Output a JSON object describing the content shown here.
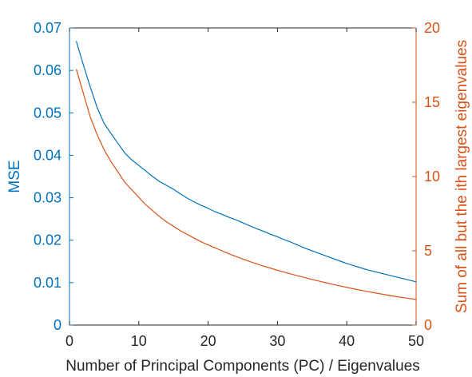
{
  "chart_data": {
    "type": "line",
    "xlabel": "Number of Principal Components (PC) / Eigenvalues",
    "ylabel_left": "MSE",
    "ylabel_right": "Sum of all but the ith largest eigenvalues",
    "xlim": [
      0,
      50
    ],
    "ylim_left": [
      0,
      0.07
    ],
    "ylim_right": [
      0,
      20
    ],
    "xticks": [
      0,
      10,
      20,
      30,
      40,
      50
    ],
    "xtick_labels": [
      "0",
      "10",
      "20",
      "30",
      "40",
      "50"
    ],
    "yticks_left": [
      0,
      0.01,
      0.02,
      0.03,
      0.04,
      0.05,
      0.06,
      0.07
    ],
    "ytick_labels_left": [
      "0",
      "0.01",
      "0.02",
      "0.03",
      "0.04",
      "0.05",
      "0.06",
      "0.07"
    ],
    "yticks_right": [
      0,
      5,
      10,
      15,
      20
    ],
    "ytick_labels_right": [
      "0",
      "5",
      "10",
      "15",
      "20"
    ],
    "grid": false,
    "legend": "none",
    "x": [
      1,
      2,
      3,
      4,
      5,
      6,
      7,
      8,
      9,
      10,
      11,
      12,
      13,
      14,
      15,
      16,
      17,
      18,
      19,
      20,
      21,
      22,
      23,
      24,
      25,
      26,
      27,
      28,
      29,
      30,
      31,
      32,
      33,
      34,
      35,
      36,
      37,
      38,
      39,
      40,
      41,
      42,
      43,
      44,
      45,
      46,
      47,
      48,
      49,
      50
    ],
    "series": [
      {
        "axis": "left",
        "color": "#0072BD",
        "values": [
          0.0668,
          0.0613,
          0.0561,
          0.0512,
          0.0475,
          0.0451,
          0.0428,
          0.0405,
          0.0389,
          0.0376,
          0.0363,
          0.035,
          0.0338,
          0.0329,
          0.032,
          0.0309,
          0.0299,
          0.029,
          0.0282,
          0.0275,
          0.0267,
          0.0261,
          0.0254,
          0.0248,
          0.0241,
          0.0234,
          0.0227,
          0.0221,
          0.0214,
          0.0208,
          0.0201,
          0.0195,
          0.0188,
          0.0181,
          0.0175,
          0.0169,
          0.0163,
          0.0157,
          0.0151,
          0.0145,
          0.014,
          0.0135,
          0.013,
          0.0126,
          0.0122,
          0.0118,
          0.0114,
          0.011,
          0.0106,
          0.0102
        ]
      },
      {
        "axis": "right",
        "color": "#D95319",
        "values": [
          17.2,
          15.6,
          14.0,
          12.8,
          11.8,
          11.0,
          10.3,
          9.6,
          9.1,
          8.6,
          8.1,
          7.7,
          7.3,
          6.95,
          6.65,
          6.35,
          6.1,
          5.85,
          5.6,
          5.4,
          5.2,
          5.0,
          4.8,
          4.62,
          4.45,
          4.28,
          4.12,
          3.97,
          3.83,
          3.69,
          3.56,
          3.43,
          3.31,
          3.19,
          3.07,
          2.96,
          2.85,
          2.74,
          2.64,
          2.54,
          2.44,
          2.35,
          2.26,
          2.17,
          2.09,
          2.01,
          1.93,
          1.86,
          1.79,
          1.72
        ]
      }
    ]
  }
}
